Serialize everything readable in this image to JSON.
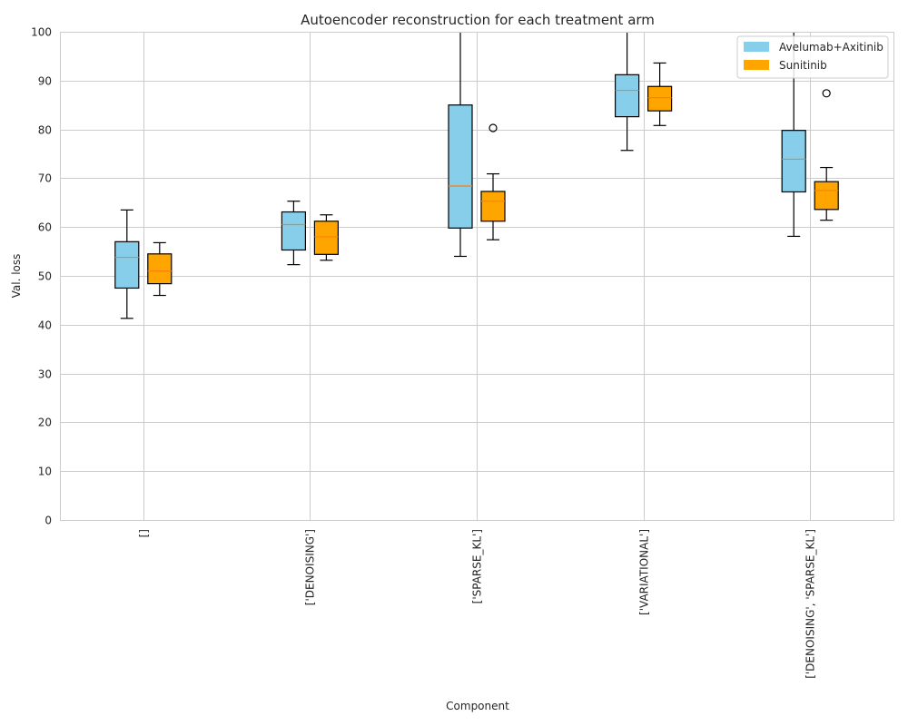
{
  "chart_data": {
    "type": "box",
    "title": "Autoencoder reconstruction for each treatment arm",
    "xlabel": "Component",
    "ylabel": "Val. loss",
    "ylim": [
      0,
      100
    ],
    "yticks": [
      0,
      10,
      20,
      30,
      40,
      50,
      60,
      70,
      80,
      90,
      100
    ],
    "categories": [
      "[]",
      "['DENOISING']",
      "['SPARSE_KL']",
      "['VARIATIONAL']",
      "['DENOISING', 'SPARSE_KL']"
    ],
    "grid": true,
    "legend_position": "top-right",
    "colors": {
      "median": "#ff7f0e"
    },
    "series": [
      {
        "name": "Avelumab+Axitinib",
        "color": "#87ceeb",
        "boxes": [
          {
            "whislo": 41.3,
            "q1": 47.5,
            "med": 53.8,
            "q3": 57.0,
            "whishi": 63.5,
            "fliers": []
          },
          {
            "whislo": 52.3,
            "q1": 55.3,
            "med": 60.5,
            "q3": 63.1,
            "whishi": 65.3,
            "fliers": []
          },
          {
            "whislo": 54.0,
            "q1": 59.8,
            "med": 68.4,
            "q3": 85.0,
            "whishi": 100.0,
            "fliers": []
          },
          {
            "whislo": 75.7,
            "q1": 82.6,
            "med": 88.0,
            "q3": 91.2,
            "whishi": 100.0,
            "fliers": []
          },
          {
            "whislo": 58.1,
            "q1": 67.2,
            "med": 73.9,
            "q3": 79.8,
            "whishi": 100.0,
            "fliers": []
          }
        ]
      },
      {
        "name": "Sunitinib",
        "color": "#ffa500",
        "boxes": [
          {
            "whislo": 46.0,
            "q1": 48.4,
            "med": 51.0,
            "q3": 54.5,
            "whishi": 56.8,
            "fliers": []
          },
          {
            "whislo": 53.2,
            "q1": 54.4,
            "med": 58.0,
            "q3": 61.2,
            "whishi": 62.5,
            "fliers": []
          },
          {
            "whislo": 57.4,
            "q1": 61.2,
            "med": 65.3,
            "q3": 67.3,
            "whishi": 70.9,
            "fliers": [
              80.3
            ]
          },
          {
            "whislo": 80.8,
            "q1": 83.8,
            "med": 86.5,
            "q3": 88.8,
            "whishi": 93.6,
            "fliers": []
          },
          {
            "whislo": 61.4,
            "q1": 63.6,
            "med": 67.5,
            "q3": 69.3,
            "whishi": 72.2,
            "fliers": [
              87.4
            ]
          }
        ]
      }
    ]
  }
}
